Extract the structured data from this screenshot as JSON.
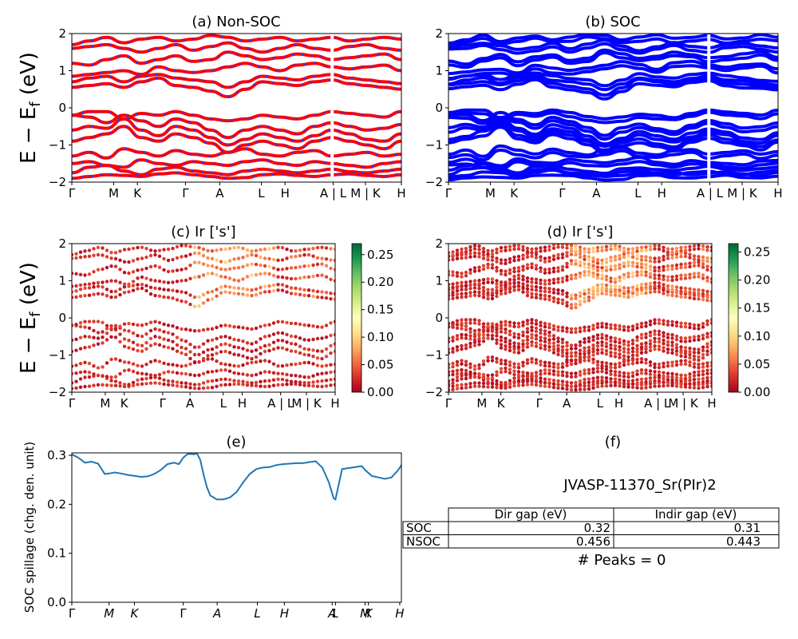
{
  "chart_data": [
    {
      "type": "line",
      "title": "(a) Non-SOC",
      "ylabel": "E − E_f (eV)",
      "ylim": [
        -2,
        2
      ],
      "yticks": [
        "−2",
        "−1",
        "0",
        "1",
        "2"
      ],
      "xticks": [
        {
          "label": "Γ",
          "pos": 0
        },
        {
          "label": "M",
          "pos": 0.127
        },
        {
          "label": "K",
          "pos": 0.199
        },
        {
          "label": "Γ",
          "pos": 0.345
        },
        {
          "label": "A",
          "pos": 0.449
        },
        {
          "label": "L",
          "pos": 0.575
        },
        {
          "label": "H",
          "pos": 0.647
        },
        {
          "label": "A | L",
          "pos": 0.793
        },
        {
          "label": "M | K",
          "pos": 0.891
        },
        {
          "label": "H",
          "pos": 1
        }
      ],
      "series": [
        {
          "kind": "bands",
          "color": "#ff0000",
          "dash_color": "#3333ff",
          "bands": [
            [
              -1.9,
              -1.85,
              -1.8,
              -1.82,
              -1.85,
              -1.78,
              -1.75,
              -1.8,
              -1.85,
              -1.9,
              -1.88,
              -1.8,
              -1.78,
              -1.82,
              -1.85,
              -1.8,
              -1.78,
              -1.82,
              -1.85,
              -1.8
            ],
            [
              -1.75,
              -1.6,
              -1.55,
              -1.7,
              -1.8,
              -1.65,
              -1.6,
              -1.7,
              -1.75,
              -1.8,
              -1.7,
              -1.65,
              -1.7,
              -1.75,
              -1.7,
              -1.65,
              -1.72,
              -1.75,
              -1.7,
              -1.65
            ],
            [
              -1.5,
              -1.45,
              -1.55,
              -1.6,
              -1.4,
              -1.5,
              -1.55,
              -1.45,
              -1.5,
              -1.55,
              -1.45,
              -1.4,
              -1.5,
              -1.55,
              -1.45,
              -1.5,
              -1.55,
              -1.6,
              -1.5,
              -1.45
            ],
            [
              -1.3,
              -1.2,
              -1.35,
              -1.1,
              -1.2,
              -1.3,
              -1.15,
              -1.25,
              -1.3,
              -1.2,
              -1.1,
              -1.25,
              -1.3,
              -1.2,
              -1.15,
              -1.3,
              -1.25,
              -1.2,
              -1.3,
              -1.25
            ],
            [
              -0.9,
              -0.8,
              -0.7,
              -0.5,
              -0.8,
              -0.9,
              -0.7,
              -0.8,
              -0.95,
              -1.2,
              -1.0,
              -0.9,
              -1.0,
              -1.1,
              -0.9,
              -0.8,
              -0.9,
              -1.0,
              -1.1,
              -0.9
            ],
            [
              -0.6,
              -0.5,
              -0.55,
              -0.3,
              -0.6,
              -0.75,
              -0.5,
              -0.6,
              -0.8,
              -1.0,
              -0.85,
              -0.7,
              -0.8,
              -0.9,
              -0.75,
              -0.6,
              -0.7,
              -0.85,
              -0.9,
              -0.7
            ],
            [
              -0.2,
              -0.25,
              -0.4,
              -0.2,
              -0.35,
              -0.5,
              -0.3,
              -0.4,
              -0.6,
              -0.8,
              -0.6,
              -0.5,
              -0.6,
              -0.7,
              -0.5,
              -0.4,
              -0.5,
              -0.6,
              -0.55,
              -0.45
            ],
            [
              -0.2,
              -0.1,
              -0.1,
              -0.3,
              -0.15,
              -0.2,
              -0.1,
              -0.2,
              -0.3,
              -0.35,
              -0.3,
              -0.2,
              -0.25,
              -0.3,
              -0.2,
              -0.1,
              -0.15,
              -0.2,
              -0.25,
              -0.1
            ],
            [
              0.55,
              0.6,
              0.65,
              0.55,
              0.7,
              0.8,
              0.6,
              0.55,
              0.45,
              0.3,
              0.5,
              0.7,
              0.65,
              0.6,
              0.7,
              0.75,
              0.65,
              0.6,
              0.55,
              0.5
            ],
            [
              0.7,
              0.8,
              0.85,
              0.7,
              0.85,
              0.9,
              0.8,
              0.75,
              0.7,
              0.55,
              0.7,
              0.85,
              0.8,
              0.75,
              0.85,
              0.9,
              0.8,
              0.75,
              0.7,
              0.65
            ],
            [
              0.85,
              0.9,
              0.95,
              1.0,
              0.9,
              1.1,
              1.0,
              0.95,
              1.0,
              1.1,
              1.2,
              1.1,
              1.0,
              1.15,
              1.2,
              1.1,
              1.05,
              1.1,
              1.15,
              1.0
            ],
            [
              1.2,
              1.15,
              1.3,
              1.4,
              1.2,
              1.3,
              1.4,
              1.25,
              1.3,
              1.5,
              1.4,
              1.3,
              1.35,
              1.45,
              1.4,
              1.3,
              1.35,
              1.4,
              1.45,
              1.3
            ],
            [
              1.6,
              1.65,
              1.7,
              1.6,
              1.5,
              1.6,
              1.7,
              1.55,
              1.65,
              1.75,
              1.6,
              1.5,
              1.6,
              1.7,
              1.6,
              1.55,
              1.65,
              1.7,
              1.6,
              1.55
            ],
            [
              1.7,
              1.8,
              1.9,
              1.75,
              1.85,
              1.9,
              1.8,
              1.85,
              1.95,
              1.9,
              1.8,
              1.85,
              1.9,
              1.8,
              1.85,
              1.9,
              1.8,
              1.85,
              1.9,
              1.85
            ]
          ]
        }
      ]
    },
    {
      "type": "line",
      "title": "(b) SOC",
      "ylim": [
        -2,
        2
      ],
      "yticks": [
        "−2",
        "−1",
        "0",
        "1",
        "2"
      ],
      "xticks": [
        {
          "label": "Γ",
          "pos": 0
        },
        {
          "label": "M",
          "pos": 0.127
        },
        {
          "label": "K",
          "pos": 0.199
        },
        {
          "label": "Γ",
          "pos": 0.345
        },
        {
          "label": "A",
          "pos": 0.449
        },
        {
          "label": "L",
          "pos": 0.575
        },
        {
          "label": "H",
          "pos": 0.647
        },
        {
          "label": "A | L",
          "pos": 0.793
        },
        {
          "label": "M | K",
          "pos": 0.891
        },
        {
          "label": "H",
          "pos": 1
        }
      ],
      "series": [
        {
          "kind": "bands",
          "color": "#0000ff"
        }
      ]
    },
    {
      "type": "scatter",
      "title": "(c)  Ir ['s']",
      "ylabel": "E − E_f (eV)",
      "ylim": [
        -2,
        2
      ],
      "yticks": [
        "−2",
        "−1",
        "0",
        "1",
        "2"
      ],
      "xticks": [
        {
          "label": "Γ",
          "pos": 0
        },
        {
          "label": "M",
          "pos": 0.127
        },
        {
          "label": "K",
          "pos": 0.199
        },
        {
          "label": "Γ",
          "pos": 0.345
        },
        {
          "label": "A",
          "pos": 0.449
        },
        {
          "label": "L",
          "pos": 0.575
        },
        {
          "label": "H",
          "pos": 0.647
        },
        {
          "label": "A | L",
          "pos": 0.793
        },
        {
          "label": "M | K",
          "pos": 0.891
        },
        {
          "label": "H",
          "pos": 1
        }
      ],
      "colorbar": {
        "min": 0.0,
        "max": 0.27,
        "ticks": [
          "0.00",
          "0.05",
          "0.10",
          "0.15",
          "0.20",
          "0.25"
        ],
        "colormap": "RdYlGn"
      }
    },
    {
      "type": "scatter",
      "title": "(d) Ir ['s']",
      "ylim": [
        -2,
        2
      ],
      "yticks": [
        "−2",
        "−1",
        "0",
        "1",
        "2"
      ],
      "xticks": [
        {
          "label": "Γ",
          "pos": 0
        },
        {
          "label": "M",
          "pos": 0.127
        },
        {
          "label": "K",
          "pos": 0.199
        },
        {
          "label": "Γ",
          "pos": 0.345
        },
        {
          "label": "A",
          "pos": 0.449
        },
        {
          "label": "L",
          "pos": 0.575
        },
        {
          "label": "H",
          "pos": 0.647
        },
        {
          "label": "A | L",
          "pos": 0.793
        },
        {
          "label": "M | K",
          "pos": 0.891
        },
        {
          "label": "H",
          "pos": 1
        }
      ],
      "colorbar": {
        "min": 0.0,
        "max": 0.265,
        "ticks": [
          "0.00",
          "0.05",
          "0.10",
          "0.15",
          "0.20",
          "0.25"
        ],
        "colormap": "RdYlGn"
      }
    },
    {
      "type": "line",
      "title": "(e)",
      "ylabel": "SOC spillage (chg. den. unit)",
      "ylim": [
        0.0,
        0.305
      ],
      "yticks": [
        "0.0",
        "0.1",
        "0.2",
        "0.3"
      ],
      "xticks": [
        {
          "label": "Γ",
          "pos": 0
        },
        {
          "label": "M",
          "pos": 0.113
        },
        {
          "label": "K",
          "pos": 0.19
        },
        {
          "label": "Γ",
          "pos": 0.338
        },
        {
          "label": "A",
          "pos": 0.441
        },
        {
          "label": "L",
          "pos": 0.563
        },
        {
          "label": "H",
          "pos": 0.645
        },
        {
          "label": "A",
          "pos": 0.79
        },
        {
          "label": "L",
          "pos": 0.8
        },
        {
          "label": "M",
          "pos": 0.89
        },
        {
          "label": "K",
          "pos": 0.9
        },
        {
          "label": "H",
          "pos": 0.995
        }
      ],
      "series": [
        {
          "color": "#1f77b4",
          "x": [
            0,
            0.02,
            0.04,
            0.06,
            0.08,
            0.1,
            0.113,
            0.13,
            0.15,
            0.17,
            0.19,
            0.21,
            0.23,
            0.25,
            0.27,
            0.29,
            0.31,
            0.325,
            0.338,
            0.35,
            0.36,
            0.37,
            0.38,
            0.39,
            0.4,
            0.41,
            0.42,
            0.44,
            0.46,
            0.48,
            0.5,
            0.52,
            0.54,
            0.56,
            0.58,
            0.6,
            0.62,
            0.64,
            0.66,
            0.68,
            0.7,
            0.72,
            0.74,
            0.76,
            0.78,
            0.79,
            0.795,
            0.8,
            0.82,
            0.84,
            0.86,
            0.88,
            0.89,
            0.91,
            0.93,
            0.95,
            0.97,
            0.99,
            1.0
          ],
          "y": [
            0.302,
            0.295,
            0.285,
            0.287,
            0.283,
            0.262,
            0.263,
            0.265,
            0.263,
            0.26,
            0.258,
            0.256,
            0.257,
            0.262,
            0.27,
            0.282,
            0.285,
            0.282,
            0.295,
            0.302,
            0.303,
            0.302,
            0.304,
            0.29,
            0.26,
            0.235,
            0.218,
            0.21,
            0.21,
            0.214,
            0.225,
            0.245,
            0.262,
            0.272,
            0.275,
            0.276,
            0.28,
            0.282,
            0.283,
            0.284,
            0.284,
            0.286,
            0.288,
            0.275,
            0.245,
            0.222,
            0.212,
            0.21,
            0.272,
            0.274,
            0.276,
            0.278,
            0.27,
            0.258,
            0.255,
            0.252,
            0.255,
            0.27,
            0.28
          ]
        }
      ]
    }
  ],
  "info": {
    "title": "(f)",
    "material": "JVASP-11370_Sr(PIr)2",
    "table": {
      "headers": [
        "Dir gap (eV)",
        "Indir gap (eV)"
      ],
      "rows": [
        {
          "label": "SOC",
          "dir": "0.32",
          "indir": "0.31"
        },
        {
          "label": "NSOC",
          "dir": "0.456",
          "indir": "0.443"
        }
      ]
    },
    "peaks": "# Peaks = 0"
  }
}
